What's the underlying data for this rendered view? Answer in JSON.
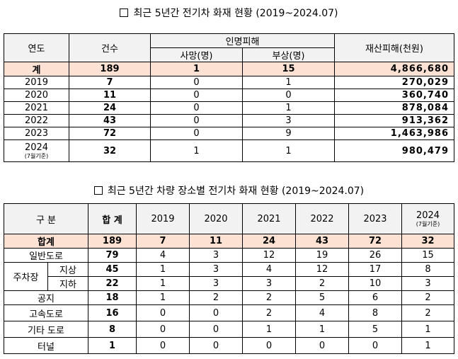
{
  "table1": {
    "title": "최근 5년간 전기차 화재 현황 (2019~2024.07)",
    "headers": {
      "year": "연도",
      "count": "건수",
      "casualty": "인명피해",
      "deaths": "사망(명)",
      "injuries": "부상(명)",
      "property": "재산피해(천원)"
    },
    "total": {
      "label": "계",
      "count": "189",
      "deaths": "1",
      "injuries": "15",
      "property": "4,866,680"
    },
    "rows": [
      {
        "year": "2019",
        "count": "7",
        "deaths": "0",
        "injuries": "1",
        "property": "270,029"
      },
      {
        "year": "2020",
        "count": "11",
        "deaths": "0",
        "injuries": "0",
        "property": "360,740"
      },
      {
        "year": "2021",
        "count": "24",
        "deaths": "0",
        "injuries": "1",
        "property": "878,084"
      },
      {
        "year": "2022",
        "count": "43",
        "deaths": "0",
        "injuries": "3",
        "property": "913,362"
      },
      {
        "year": "2023",
        "count": "72",
        "deaths": "0",
        "injuries": "9",
        "property": "1,463,986"
      }
    ],
    "last_row": {
      "year": "2024",
      "note": "(7월기준)",
      "count": "32",
      "deaths": "1",
      "injuries": "1",
      "property": "980,479"
    }
  },
  "table2": {
    "title": "최근 5년간 차량 장소별 전기차 화재 현황 (2019~2024.07)",
    "headers": {
      "category": "구 분",
      "total": "합 계",
      "years": [
        "2019",
        "2020",
        "2021",
        "2022",
        "2023",
        "2024"
      ],
      "last_note": "(7월기준)"
    },
    "total": {
      "label": "합계",
      "values": [
        "189",
        "7",
        "11",
        "24",
        "43",
        "72",
        "32"
      ]
    },
    "rows": [
      {
        "label": "일반도로",
        "values": [
          "79",
          "4",
          "3",
          "12",
          "19",
          "26",
          "15"
        ]
      },
      {
        "label": "공지",
        "values": [
          "18",
          "1",
          "2",
          "2",
          "5",
          "6",
          "2"
        ]
      },
      {
        "label": "고속도로",
        "values": [
          "16",
          "0",
          "0",
          "2",
          "4",
          "8",
          "2"
        ]
      },
      {
        "label": "기타 도로",
        "values": [
          "8",
          "0",
          "0",
          "1",
          "1",
          "5",
          "1"
        ]
      },
      {
        "label": "터널",
        "values": [
          "1",
          "0",
          "0",
          "0",
          "0",
          "0",
          "1"
        ]
      }
    ],
    "parking": {
      "label": "주차장",
      "sub": [
        {
          "label": "지상",
          "values": [
            "45",
            "1",
            "3",
            "4",
            "12",
            "17",
            "8"
          ]
        },
        {
          "label": "지하",
          "values": [
            "22",
            "1",
            "3",
            "3",
            "2",
            "10",
            "3"
          ]
        }
      ]
    }
  }
}
